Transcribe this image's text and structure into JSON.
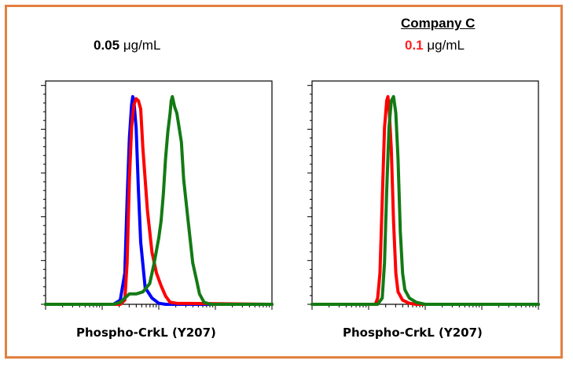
{
  "panels": [
    {
      "header": "",
      "concentration_value": "0.05",
      "concentration_unit": "μg/mL",
      "concentration_color": "#000000",
      "xlabel": "Phospho-CrkL (Y207)"
    },
    {
      "header": "Company C",
      "concentration_value": "0.1",
      "concentration_unit": "μg/mL",
      "concentration_color": "#ff1f1f",
      "xlabel": "Phospho-CrkL (Y207)"
    }
  ],
  "colors": {
    "frame": "#e2803f",
    "blue": "#0000ff",
    "red": "#ff0000",
    "green": "#137a13"
  },
  "chart_data": [
    {
      "type": "line",
      "title": "",
      "xlabel": "Phospho-CrkL (Y207)",
      "ylabel": "",
      "xlim": [
        0,
        100
      ],
      "ylim": [
        0,
        100
      ],
      "xscale": "log-like (unlabeled ticks)",
      "series": [
        {
          "color": "#0000ff",
          "points": [
            [
              0,
              0
            ],
            [
              30,
              0
            ],
            [
              33,
              2
            ],
            [
              35,
              15
            ],
            [
              36,
              50
            ],
            [
              37,
              80
            ],
            [
              38,
              96
            ],
            [
              38.5,
              100
            ],
            [
              39,
              98
            ],
            [
              40,
              85
            ],
            [
              41,
              55
            ],
            [
              42,
              30
            ],
            [
              44,
              8
            ],
            [
              47,
              3
            ],
            [
              50,
              0.5
            ],
            [
              53,
              0
            ],
            [
              100,
              0
            ]
          ]
        },
        {
          "color": "#ff0000",
          "points": [
            [
              0,
              0
            ],
            [
              33,
              0
            ],
            [
              35,
              2
            ],
            [
              36,
              20
            ],
            [
              37,
              60
            ],
            [
              38,
              85
            ],
            [
              39,
              96
            ],
            [
              40,
              99
            ],
            [
              41,
              98
            ],
            [
              42,
              94
            ],
            [
              43,
              75
            ],
            [
              45,
              45
            ],
            [
              47,
              25
            ],
            [
              49,
              15
            ],
            [
              51,
              9
            ],
            [
              53,
              4
            ],
            [
              55,
              1
            ],
            [
              58,
              0.5
            ],
            [
              100,
              0
            ]
          ]
        },
        {
          "color": "#137a13",
          "points": [
            [
              0,
              0
            ],
            [
              30,
              0
            ],
            [
              33,
              1
            ],
            [
              35,
              3
            ],
            [
              37,
              5
            ],
            [
              40,
              5
            ],
            [
              43,
              6
            ],
            [
              46,
              10
            ],
            [
              48,
              20
            ],
            [
              50,
              32
            ],
            [
              51,
              40
            ],
            [
              52,
              53
            ],
            [
              53,
              70
            ],
            [
              54,
              83
            ],
            [
              55,
              92
            ],
            [
              55.5,
              98
            ],
            [
              56,
              100
            ],
            [
              57,
              95
            ],
            [
              58,
              92
            ],
            [
              59,
              85
            ],
            [
              60,
              78
            ],
            [
              61,
              60
            ],
            [
              63,
              40
            ],
            [
              65,
              20
            ],
            [
              67,
              10
            ],
            [
              68,
              5
            ],
            [
              70,
              1
            ],
            [
              73,
              0
            ],
            [
              100,
              0
            ]
          ]
        }
      ]
    },
    {
      "type": "line",
      "title": "Company C",
      "xlabel": "Phospho-CrkL (Y207)",
      "ylabel": "",
      "xlim": [
        0,
        100
      ],
      "ylim": [
        0,
        100
      ],
      "xscale": "log-like (unlabeled ticks)",
      "series": [
        {
          "color": "#ff0000",
          "points": [
            [
              0,
              0
            ],
            [
              28,
              0
            ],
            [
              29,
              3
            ],
            [
              30,
              15
            ],
            [
              31,
              50
            ],
            [
              32,
              85
            ],
            [
              33,
              98
            ],
            [
              33.5,
              100
            ],
            [
              34,
              95
            ],
            [
              35,
              75
            ],
            [
              36,
              40
            ],
            [
              37,
              15
            ],
            [
              38,
              6
            ],
            [
              40,
              2
            ],
            [
              43,
              0.5
            ],
            [
              46,
              0
            ],
            [
              100,
              0
            ]
          ]
        },
        {
          "color": "#137a13",
          "points": [
            [
              0,
              0
            ],
            [
              29,
              0
            ],
            [
              31,
              3
            ],
            [
              32,
              20
            ],
            [
              33,
              55
            ],
            [
              34,
              85
            ],
            [
              35,
              98
            ],
            [
              36,
              100
            ],
            [
              37,
              92
            ],
            [
              38,
              70
            ],
            [
              39,
              35
            ],
            [
              40,
              15
            ],
            [
              41,
              7
            ],
            [
              43,
              3
            ],
            [
              46,
              1
            ],
            [
              50,
              0
            ],
            [
              100,
              0
            ]
          ]
        }
      ]
    }
  ]
}
